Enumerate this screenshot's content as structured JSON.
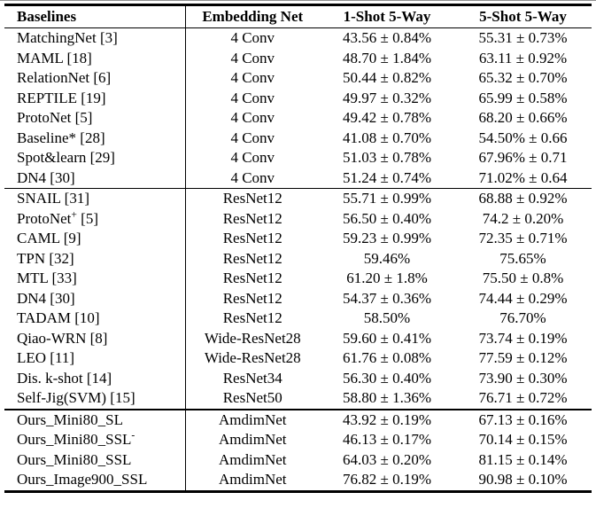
{
  "table": {
    "columns": [
      "Baselines",
      "Embedding Net",
      "1-Shot 5-Way",
      "5-Shot 5-Way"
    ],
    "rows": [
      {
        "baseline": "MatchingNet [3]",
        "embedding": "4 Conv",
        "one_shot": "43.56 ± 0.84%",
        "five_shot": "55.31 ± 0.73%",
        "section": 1,
        "bold_name": false,
        "bold_values": false
      },
      {
        "baseline": "MAML [18]",
        "embedding": "4 Conv",
        "one_shot": "48.70 ± 1.84%",
        "five_shot": "63.11 ± 0.92%",
        "section": 1,
        "bold_name": false,
        "bold_values": false
      },
      {
        "baseline": "RelationNet [6]",
        "embedding": "4 Conv",
        "one_shot": "50.44 ± 0.82%",
        "five_shot": "65.32 ± 0.70%",
        "section": 1,
        "bold_name": false,
        "bold_values": false
      },
      {
        "baseline": "REPTILE [19]",
        "embedding": "4 Conv",
        "one_shot": "49.97 ± 0.32%",
        "five_shot": "65.99 ± 0.58%",
        "section": 1,
        "bold_name": false,
        "bold_values": false
      },
      {
        "baseline": "ProtoNet [5]",
        "embedding": "4 Conv",
        "one_shot": "49.42 ± 0.78%",
        "five_shot": "68.20 ± 0.66%",
        "section": 1,
        "bold_name": false,
        "bold_values": false
      },
      {
        "baseline": "Baseline* [28]",
        "embedding": "4 Conv",
        "one_shot": "41.08 ± 0.70%",
        "five_shot": "54.50% ± 0.66",
        "section": 1,
        "bold_name": false,
        "bold_values": false
      },
      {
        "baseline": "Spot&learn [29]",
        "embedding": "4 Conv",
        "one_shot": "51.03 ± 0.78%",
        "five_shot": "67.96% ± 0.71",
        "section": 1,
        "bold_name": false,
        "bold_values": false
      },
      {
        "baseline": "DN4 [30]",
        "embedding": "4 Conv",
        "one_shot": "51.24 ± 0.74%",
        "five_shot": "71.02% ± 0.64",
        "section": 1,
        "bold_name": false,
        "bold_values": false
      },
      {
        "baseline": "SNAIL [31]",
        "embedding": "ResNet12",
        "one_shot": "55.71 ± 0.99%",
        "five_shot": "68.88 ± 0.92%",
        "section": 2,
        "bold_name": false,
        "bold_values": false
      },
      {
        "baseline": "ProtoNet^{+} [5]",
        "embedding": "ResNet12",
        "one_shot": "56.50 ± 0.40%",
        "five_shot": "74.2 ± 0.20%",
        "section": 2,
        "bold_name": false,
        "bold_values": false
      },
      {
        "baseline": "CAML [9]",
        "embedding": "ResNet12",
        "one_shot": "59.23 ± 0.99%",
        "five_shot": "72.35 ± 0.71%",
        "section": 2,
        "bold_name": false,
        "bold_values": false
      },
      {
        "baseline": "TPN [32]",
        "embedding": "ResNet12",
        "one_shot": "59.46%",
        "five_shot": "75.65%",
        "section": 2,
        "bold_name": false,
        "bold_values": false
      },
      {
        "baseline": "MTL [33]",
        "embedding": "ResNet12",
        "one_shot": "61.20 ± 1.8%",
        "five_shot": "75.50 ± 0.8%",
        "section": 2,
        "bold_name": false,
        "bold_values": false
      },
      {
        "baseline": "DN4 [30]",
        "embedding": "ResNet12",
        "one_shot": "54.37 ± 0.36%",
        "five_shot": "74.44 ± 0.29%",
        "section": 2,
        "bold_name": false,
        "bold_values": false
      },
      {
        "baseline": "TADAM [10]",
        "embedding": "ResNet12",
        "one_shot": "58.50%",
        "five_shot": "76.70%",
        "section": 2,
        "bold_name": false,
        "bold_values": false
      },
      {
        "baseline": "Qiao-WRN [8]",
        "embedding": "Wide-ResNet28",
        "one_shot": "59.60 ± 0.41%",
        "five_shot": "73.74 ± 0.19%",
        "section": 2,
        "bold_name": false,
        "bold_values": false
      },
      {
        "baseline": "LEO [11]",
        "embedding": "Wide-ResNet28",
        "one_shot": "61.76 ± 0.08%",
        "five_shot": "77.59 ± 0.12%",
        "section": 2,
        "bold_name": false,
        "bold_values": false
      },
      {
        "baseline": "Dis. k-shot [14]",
        "embedding": "ResNet34",
        "one_shot": "56.30 ± 0.40%",
        "five_shot": "73.90 ± 0.30%",
        "section": 2,
        "bold_name": false,
        "bold_values": false
      },
      {
        "baseline": "Self-Jig(SVM) [15]",
        "embedding": "ResNet50",
        "one_shot": "58.80 ± 1.36%",
        "five_shot": "76.71 ± 0.72%",
        "section": 2,
        "bold_name": false,
        "bold_values": false
      },
      {
        "baseline": "Ours_Mini80_SL",
        "embedding": "AmdimNet",
        "one_shot": "43.92 ± 0.19%",
        "five_shot": "67.13 ± 0.16%",
        "section": 3,
        "bold_name": true,
        "bold_values": false
      },
      {
        "baseline": "Ours_Mini80_SSL^{-}",
        "embedding": "AmdimNet",
        "one_shot": "46.13 ± 0.17%",
        "five_shot": "70.14 ± 0.15%",
        "section": 3,
        "bold_name": true,
        "bold_values": false
      },
      {
        "baseline": "Ours_Mini80_SSL",
        "embedding": "AmdimNet",
        "one_shot": "64.03 ± 0.20%",
        "five_shot": "81.15 ± 0.14%",
        "section": 3,
        "bold_name": true,
        "bold_values": true
      },
      {
        "baseline": "Ours_Image900_SSL",
        "embedding": "AmdimNet",
        "one_shot": "76.82 ± 0.19%",
        "five_shot": "90.98 ± 0.10%",
        "section": 3,
        "bold_name": true,
        "bold_values": true
      }
    ]
  },
  "colors": {
    "text": "#000000",
    "rule": "#000000",
    "background": "#ffffff",
    "top_artifact_line": "#8f8f8f"
  }
}
